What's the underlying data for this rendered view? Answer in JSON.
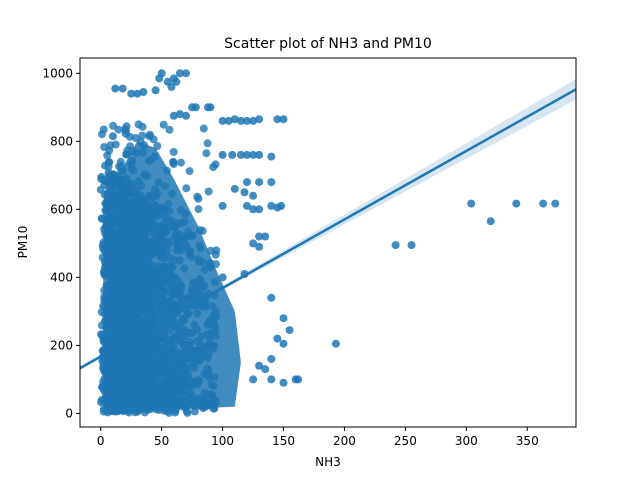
{
  "chart_data": {
    "type": "scatter",
    "title": "Scatter plot of NH3 and PM10",
    "xlabel": "NH3",
    "ylabel": "PM10",
    "xlim": [
      -17,
      390
    ],
    "ylim": [
      -40,
      1045
    ],
    "xticks": [
      0,
      50,
      100,
      150,
      200,
      250,
      300,
      350
    ],
    "yticks": [
      0,
      200,
      400,
      600,
      800,
      1000
    ],
    "grid": false,
    "colors": {
      "points": "#1f77b4",
      "line": "#1f77b4",
      "band": "#1f77b4"
    },
    "regression": {
      "x": [
        -17,
        390
      ],
      "y": [
        133,
        953
      ],
      "ci_halfwidth_at_x0": 6,
      "ci_halfwidth_at_x1": 30
    },
    "cluster": {
      "x_range": [
        0,
        160
      ],
      "y_range": [
        0,
        1000
      ]
    },
    "points": [
      [
        10,
        815
      ],
      [
        12,
        955
      ],
      [
        18,
        955
      ],
      [
        25,
        940
      ],
      [
        30,
        940
      ],
      [
        35,
        945
      ],
      [
        45,
        950
      ],
      [
        48,
        985
      ],
      [
        50,
        1000
      ],
      [
        55,
        975
      ],
      [
        58,
        960
      ],
      [
        60,
        985
      ],
      [
        62,
        975
      ],
      [
        65,
        1000
      ],
      [
        70,
        1000
      ],
      [
        75,
        900
      ],
      [
        78,
        900
      ],
      [
        88,
        900
      ],
      [
        90,
        900
      ],
      [
        100,
        860
      ],
      [
        105,
        860
      ],
      [
        110,
        865
      ],
      [
        115,
        860
      ],
      [
        120,
        860
      ],
      [
        125,
        860
      ],
      [
        130,
        865
      ],
      [
        145,
        865
      ],
      [
        150,
        865
      ],
      [
        100,
        760
      ],
      [
        108,
        760
      ],
      [
        115,
        760
      ],
      [
        120,
        760
      ],
      [
        125,
        760
      ],
      [
        130,
        760
      ],
      [
        140,
        755
      ],
      [
        60,
        875
      ],
      [
        65,
        880
      ],
      [
        70,
        875
      ],
      [
        120,
        680
      ],
      [
        130,
        680
      ],
      [
        140,
        680
      ],
      [
        110,
        660
      ],
      [
        118,
        650
      ],
      [
        125,
        640
      ],
      [
        100,
        610
      ],
      [
        120,
        610
      ],
      [
        125,
        600
      ],
      [
        130,
        600
      ],
      [
        140,
        610
      ],
      [
        145,
        605
      ],
      [
        148,
        610
      ],
      [
        130,
        520
      ],
      [
        135,
        520
      ],
      [
        125,
        500
      ],
      [
        130,
        490
      ],
      [
        100,
        400
      ],
      [
        118,
        410
      ],
      [
        140,
        340
      ],
      [
        150,
        280
      ],
      [
        145,
        220
      ],
      [
        155,
        245
      ],
      [
        150,
        205
      ],
      [
        140,
        160
      ],
      [
        130,
        140
      ],
      [
        125,
        100
      ],
      [
        135,
        130
      ],
      [
        140,
        100
      ],
      [
        150,
        90
      ],
      [
        160,
        100
      ],
      [
        162,
        100
      ],
      [
        193,
        205
      ],
      [
        242,
        495
      ],
      [
        255,
        495
      ],
      [
        304,
        617
      ],
      [
        320,
        565
      ],
      [
        341,
        617
      ],
      [
        363,
        617
      ],
      [
        373,
        617
      ]
    ]
  }
}
